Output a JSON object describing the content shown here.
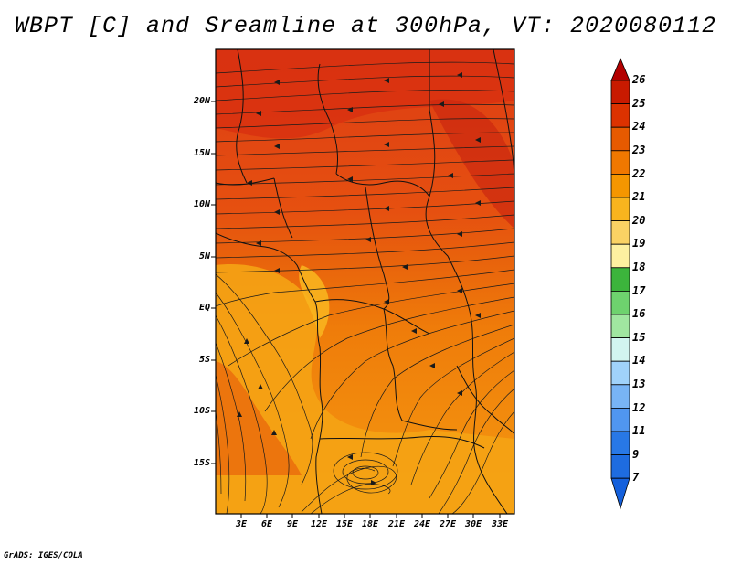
{
  "title": "WBPT [C] and Sreamline at 300hPa, VT: 2020080112",
  "credit": "GrADS: IGES/COLA",
  "map": {
    "variable": "Wet-bulb potential temperature [C] with streamlines",
    "level": "300hPa",
    "valid_time": "2020080112",
    "lat_labels": [
      "20N",
      "15N",
      "10N",
      "5N",
      "EQ",
      "5S",
      "10S",
      "15S"
    ],
    "lon_labels": [
      "3E",
      "6E",
      "9E",
      "12E",
      "15E",
      "18E",
      "21E",
      "24E",
      "27E",
      "30E",
      "33E"
    ]
  },
  "colorbar": {
    "labels": [
      "26",
      "25",
      "24",
      "23",
      "22",
      "21",
      "20",
      "19",
      "18",
      "17",
      "16",
      "15",
      "14",
      "13",
      "12",
      "11",
      "9",
      "7"
    ],
    "colors": [
      "#b30000",
      "#c81a00",
      "#dc3200",
      "#e65a00",
      "#f07800",
      "#f59600",
      "#f8b41e",
      "#fad264",
      "#fdf0a0",
      "#3cb43c",
      "#6ed26e",
      "#a0e6a0",
      "#d2f5f0",
      "#a0d2fa",
      "#78b4f5",
      "#5096f0",
      "#2878e6",
      "#1460dc"
    ]
  }
}
